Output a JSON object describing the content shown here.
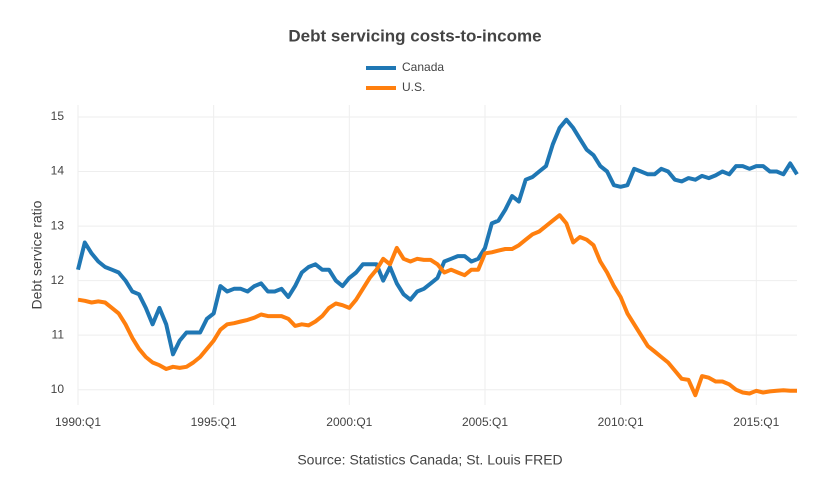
{
  "chart_data": {
    "type": "line",
    "title": "Debt servicing costs-to-income",
    "y_label": "Debt service ratio",
    "annotation": "Source: Statistics Canada; St. Louis FRED",
    "x": [
      1990,
      1990.25,
      1990.5,
      1990.75,
      1991,
      1991.25,
      1991.5,
      1991.75,
      1992,
      1992.25,
      1992.5,
      1992.75,
      1993,
      1993.25,
      1993.5,
      1993.75,
      1994,
      1994.25,
      1994.5,
      1994.75,
      1995,
      1995.25,
      1995.5,
      1995.75,
      1996,
      1996.25,
      1996.5,
      1996.75,
      1997,
      1997.25,
      1997.5,
      1997.75,
      1998,
      1998.25,
      1998.5,
      1998.75,
      1999,
      1999.25,
      1999.5,
      1999.75,
      2000,
      2000.25,
      2000.5,
      2000.75,
      2001,
      2001.25,
      2001.5,
      2001.75,
      2002,
      2002.25,
      2002.5,
      2002.75,
      2003,
      2003.25,
      2003.5,
      2003.75,
      2004,
      2004.25,
      2004.5,
      2004.75,
      2005,
      2005.25,
      2005.5,
      2005.75,
      2006,
      2006.25,
      2006.5,
      2006.75,
      2007,
      2007.25,
      2007.5,
      2007.75,
      2008,
      2008.25,
      2008.5,
      2008.75,
      2009,
      2009.25,
      2009.5,
      2009.75,
      2010,
      2010.25,
      2010.5,
      2010.75,
      2011,
      2011.25,
      2011.5,
      2011.75,
      2012,
      2012.25,
      2012.5,
      2012.75,
      2013,
      2013.25,
      2013.5,
      2013.75,
      2014,
      2014.25,
      2014.5,
      2014.75,
      2015,
      2015.25,
      2015.5,
      2015.75,
      2016,
      2016.25,
      2016.5
    ],
    "series": [
      {
        "name": "Canada",
        "color": "#1f77b4",
        "values": [
          12.2,
          12.7,
          12.5,
          12.35,
          12.25,
          12.2,
          12.15,
          12.0,
          11.8,
          11.75,
          11.5,
          11.2,
          11.5,
          11.2,
          10.65,
          10.9,
          11.05,
          11.05,
          11.05,
          11.3,
          11.4,
          11.9,
          11.8,
          11.85,
          11.85,
          11.8,
          11.9,
          11.95,
          11.8,
          11.8,
          11.85,
          11.7,
          11.9,
          12.15,
          12.25,
          12.3,
          12.2,
          12.2,
          12.0,
          11.9,
          12.05,
          12.15,
          12.3,
          12.3,
          12.3,
          12.0,
          12.25,
          11.95,
          11.75,
          11.65,
          11.8,
          11.85,
          11.95,
          12.05,
          12.35,
          12.4,
          12.45,
          12.45,
          12.35,
          12.4,
          12.6,
          13.05,
          13.1,
          13.3,
          13.55,
          13.45,
          13.85,
          13.9,
          14.0,
          14.1,
          14.5,
          14.8,
          14.95,
          14.8,
          14.6,
          14.4,
          14.3,
          14.1,
          14.0,
          13.75,
          13.72,
          13.75,
          14.05,
          14.0,
          13.95,
          13.95,
          14.05,
          14.0,
          13.85,
          13.82,
          13.88,
          13.85,
          13.92,
          13.88,
          13.93,
          14.0,
          13.95,
          14.1,
          14.1,
          14.05,
          14.1,
          14.1,
          14.0,
          14.0,
          13.95,
          14.15,
          13.95
        ]
      },
      {
        "name": "U.S.",
        "color": "#ff7f0e",
        "values": [
          11.65,
          11.63,
          11.6,
          11.62,
          11.6,
          11.5,
          11.4,
          11.2,
          10.95,
          10.75,
          10.6,
          10.5,
          10.45,
          10.38,
          10.42,
          10.4,
          10.42,
          10.5,
          10.6,
          10.75,
          10.9,
          11.1,
          11.2,
          11.22,
          11.25,
          11.28,
          11.32,
          11.38,
          11.35,
          11.35,
          11.35,
          11.3,
          11.17,
          11.2,
          11.18,
          11.25,
          11.35,
          11.5,
          11.58,
          11.55,
          11.5,
          11.65,
          11.85,
          12.05,
          12.2,
          12.4,
          12.3,
          12.6,
          12.4,
          12.35,
          12.4,
          12.38,
          12.38,
          12.3,
          12.15,
          12.2,
          12.15,
          12.1,
          12.2,
          12.2,
          12.5,
          12.52,
          12.55,
          12.58,
          12.58,
          12.65,
          12.75,
          12.85,
          12.9,
          13.0,
          13.1,
          13.2,
          13.05,
          12.7,
          12.8,
          12.75,
          12.65,
          12.35,
          12.15,
          11.9,
          11.7,
          11.4,
          11.2,
          11.0,
          10.8,
          10.7,
          10.6,
          10.5,
          10.35,
          10.2,
          10.18,
          9.9,
          10.25,
          10.22,
          10.15,
          10.15,
          10.1,
          10.0,
          9.95,
          9.93,
          9.98,
          9.95,
          9.97,
          9.98,
          9.99,
          9.98,
          9.98
        ]
      }
    ],
    "xlim": [
      1990,
      2016.5
    ],
    "xticks": [
      {
        "value": 1990,
        "label": "1990:Q1"
      },
      {
        "value": 1995,
        "label": "1995:Q1"
      },
      {
        "value": 2000,
        "label": "2000:Q1"
      },
      {
        "value": 2005,
        "label": "2005:Q1"
      },
      {
        "value": 2010,
        "label": "2010:Q1"
      },
      {
        "value": 2015,
        "label": "2015:Q1"
      }
    ],
    "ylim": [
      9.72,
      15.22
    ],
    "yticks": [
      10,
      11,
      12,
      13,
      14,
      15
    ],
    "grid": true,
    "legend": "top"
  }
}
